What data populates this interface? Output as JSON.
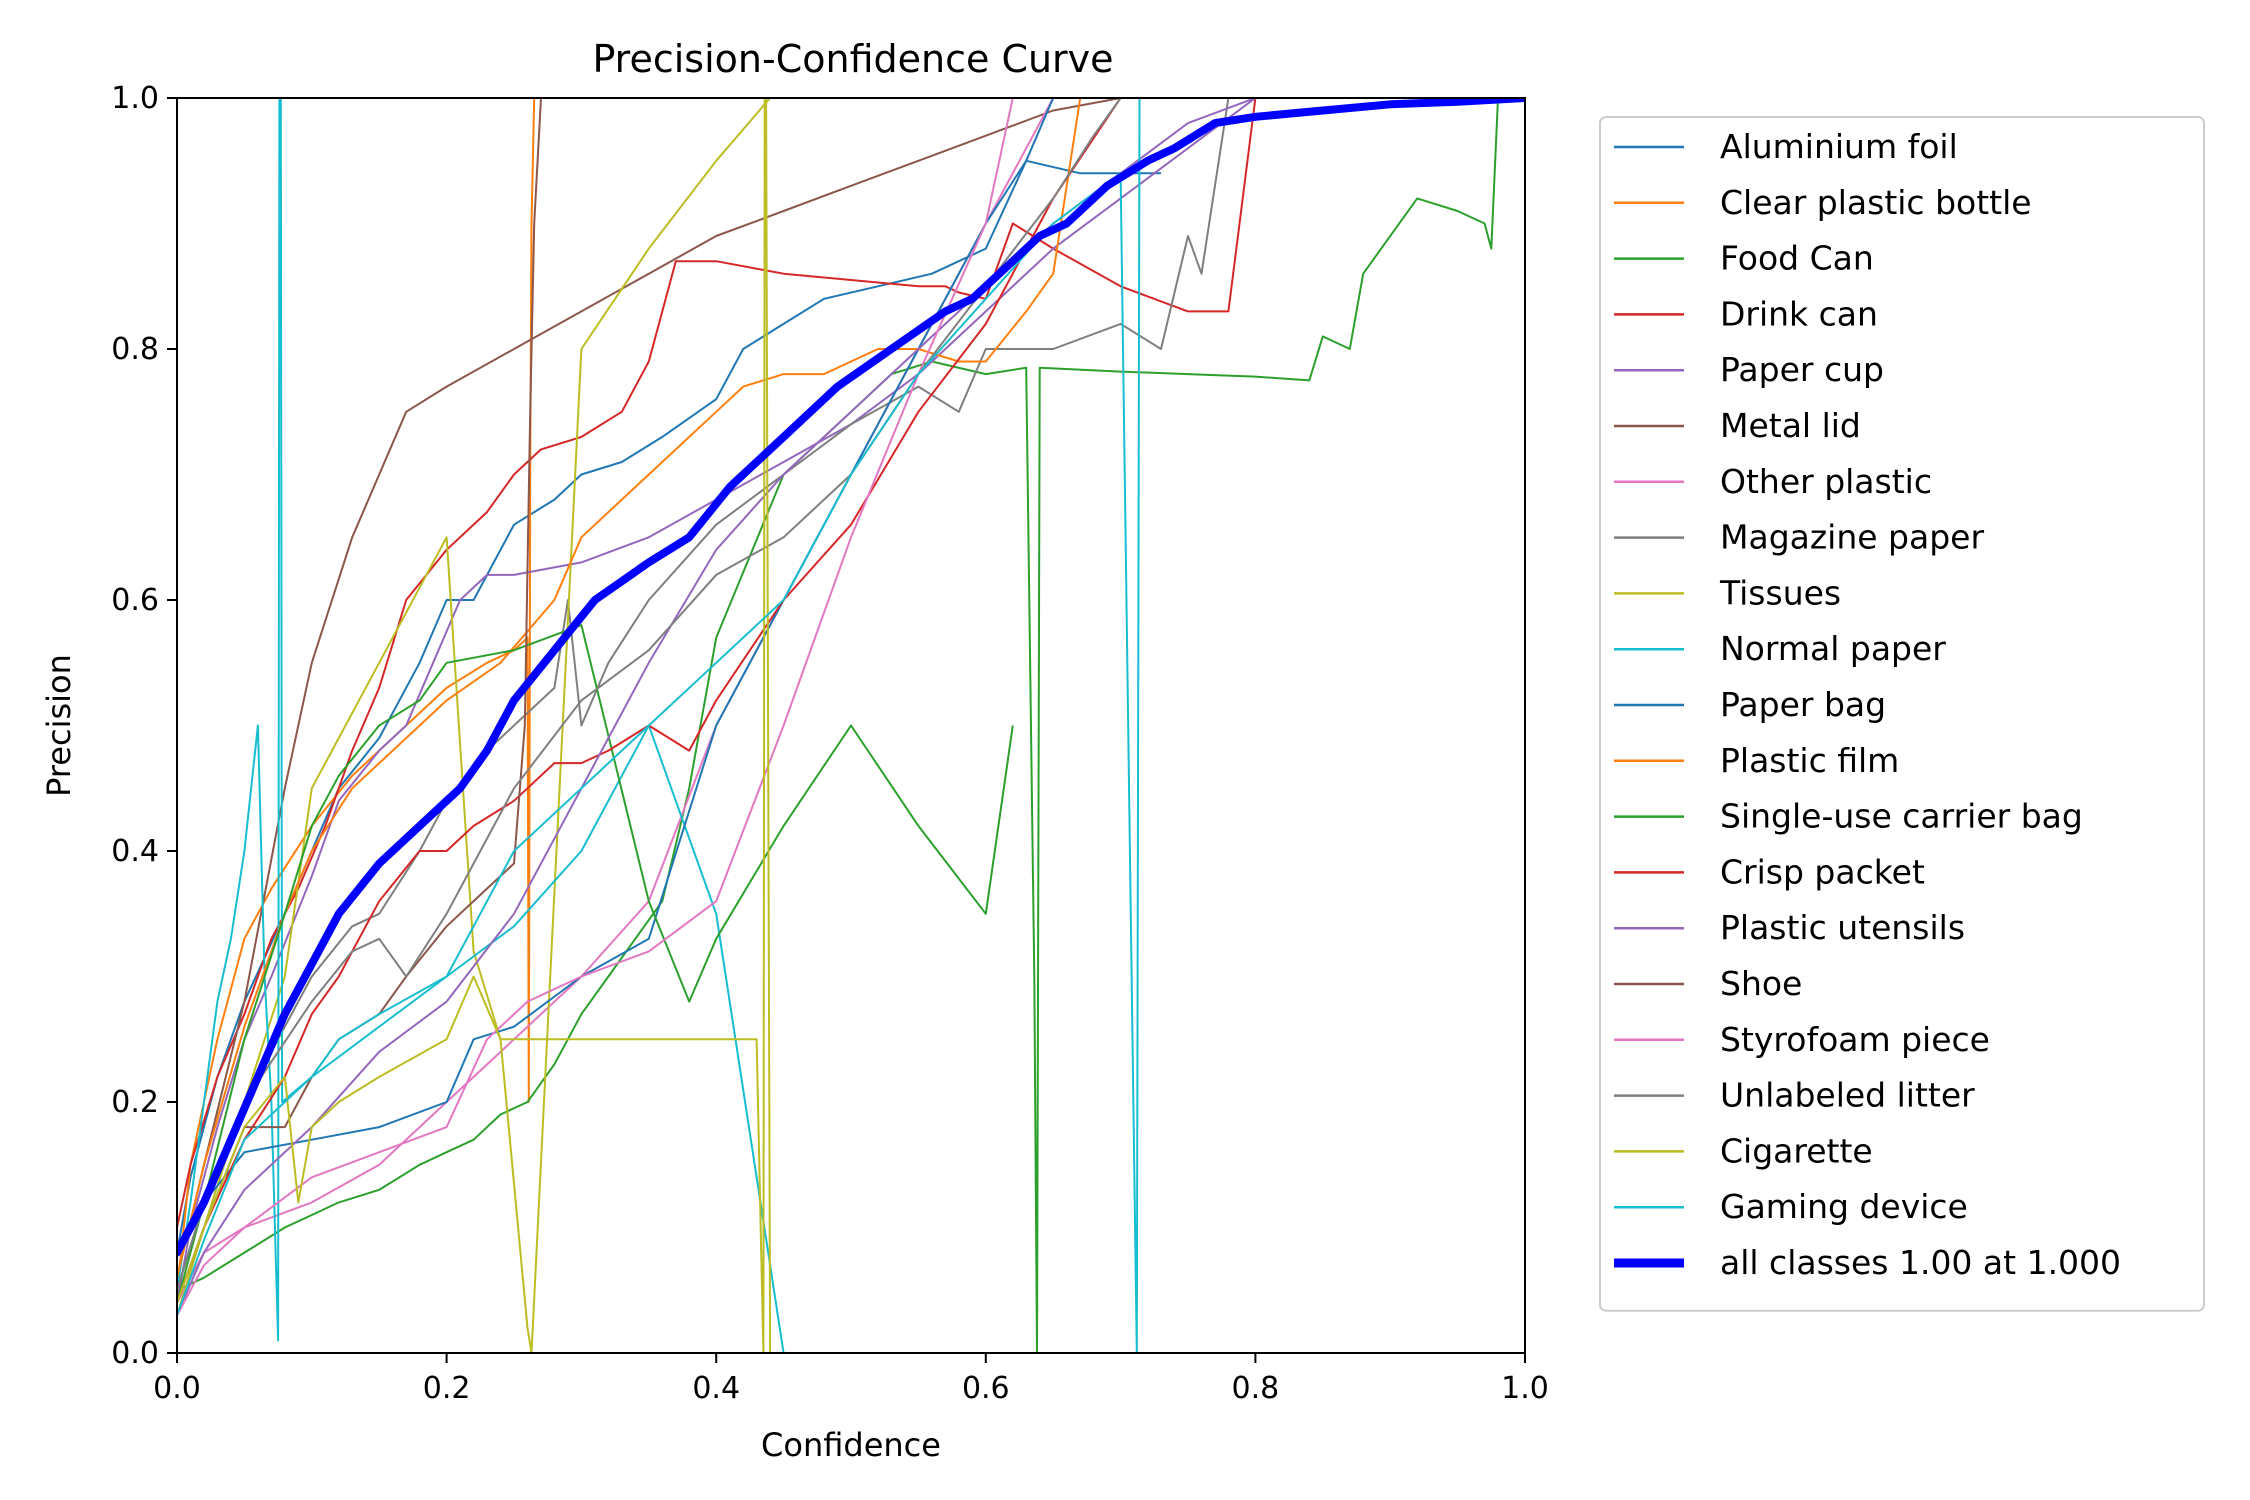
{
  "chart_data": {
    "type": "line",
    "title": "Precision-Confidence Curve",
    "xlabel": "Confidence",
    "ylabel": "Precision",
    "xlim": [
      0,
      1
    ],
    "ylim": [
      0,
      1
    ],
    "xticks": [
      "0.0",
      "0.2",
      "0.4",
      "0.6",
      "0.8",
      "1.0"
    ],
    "yticks": [
      "0.0",
      "0.2",
      "0.4",
      "0.6",
      "0.8",
      "1.0"
    ],
    "grid": false,
    "legend_position": "outside-right",
    "series": [
      {
        "name": "Aluminium foil",
        "color": "#1f77b4",
        "x": [
          0,
          0.01,
          0.03,
          0.05,
          0.08,
          0.1,
          0.12,
          0.15,
          0.18,
          0.2,
          0.22,
          0.25,
          0.28,
          0.3,
          0.33,
          0.36,
          0.4,
          0.42,
          0.45,
          0.48,
          0.52,
          0.56,
          0.6,
          0.63,
          0.67,
          0.7,
          0.73
        ],
        "y": [
          0.08,
          0.14,
          0.22,
          0.28,
          0.35,
          0.4,
          0.45,
          0.49,
          0.55,
          0.6,
          0.6,
          0.66,
          0.68,
          0.7,
          0.71,
          0.73,
          0.76,
          0.8,
          0.82,
          0.84,
          0.85,
          0.86,
          0.88,
          0.95,
          0.94,
          0.94,
          0.94
        ]
      },
      {
        "name": "Clear plastic bottle",
        "color": "#ff7f0e",
        "x": [
          0,
          0.01,
          0.03,
          0.05,
          0.07,
          0.1,
          0.13,
          0.16,
          0.2,
          0.23,
          0.25,
          0.26,
          0.261,
          0.262,
          0.263,
          0.265,
          0.268
        ],
        "y": [
          0.05,
          0.15,
          0.25,
          0.33,
          0.37,
          0.42,
          0.46,
          0.49,
          0.53,
          0.55,
          0.56,
          0.57,
          0.2,
          0.7,
          0.9,
          1.0,
          1.0
        ]
      },
      {
        "name": "Food Can",
        "color": "#2ca02c",
        "x": [
          0,
          0.02,
          0.05,
          0.08,
          0.1,
          0.12,
          0.15,
          0.18,
          0.2,
          0.22,
          0.24,
          0.26,
          0.28,
          0.3,
          0.32,
          0.34,
          0.36,
          0.38,
          0.4,
          0.45,
          0.5,
          0.53,
          0.56,
          0.6,
          0.63,
          0.636,
          0.638,
          0.64,
          0.7,
          0.75,
          0.8,
          0.84,
          0.85,
          0.87,
          0.88,
          0.92,
          0.95,
          0.97,
          0.975,
          0.98
        ],
        "y": [
          0.05,
          0.06,
          0.08,
          0.1,
          0.11,
          0.12,
          0.13,
          0.15,
          0.16,
          0.17,
          0.19,
          0.2,
          0.23,
          0.27,
          0.3,
          0.33,
          0.36,
          0.45,
          0.57,
          0.7,
          0.75,
          0.78,
          0.79,
          0.78,
          0.785,
          0.3,
          0.0,
          0.785,
          0.782,
          0.78,
          0.778,
          0.775,
          0.81,
          0.8,
          0.86,
          0.92,
          0.91,
          0.9,
          0.88,
          1.0
        ]
      },
      {
        "name": "Drink can",
        "color": "#d62728",
        "x": [
          0,
          0.01,
          0.03,
          0.05,
          0.07,
          0.09,
          0.11,
          0.13,
          0.15,
          0.17,
          0.2,
          0.23,
          0.25,
          0.27,
          0.3,
          0.33,
          0.35,
          0.37,
          0.39,
          0.4,
          0.45,
          0.5,
          0.55,
          0.57,
          0.58,
          0.6,
          0.62,
          0.65,
          0.7,
          0.75,
          0.78,
          0.8
        ],
        "y": [
          0.1,
          0.15,
          0.22,
          0.27,
          0.33,
          0.37,
          0.42,
          0.48,
          0.53,
          0.6,
          0.64,
          0.67,
          0.7,
          0.72,
          0.73,
          0.75,
          0.79,
          0.87,
          0.87,
          0.87,
          0.86,
          0.855,
          0.85,
          0.85,
          0.845,
          0.84,
          0.9,
          0.88,
          0.85,
          0.83,
          0.83,
          1.0
        ]
      },
      {
        "name": "Paper cup",
        "color": "#9467bd",
        "x": [
          0,
          0.01,
          0.03,
          0.05,
          0.07,
          0.1,
          0.12,
          0.15,
          0.17,
          0.19,
          0.21,
          0.23,
          0.25,
          0.3,
          0.35,
          0.4,
          0.45,
          0.5,
          0.55,
          0.6,
          0.65,
          0.7,
          0.75,
          0.8
        ],
        "y": [
          0.04,
          0.1,
          0.18,
          0.25,
          0.3,
          0.38,
          0.44,
          0.48,
          0.5,
          0.55,
          0.6,
          0.62,
          0.62,
          0.63,
          0.65,
          0.68,
          0.71,
          0.74,
          0.78,
          0.83,
          0.88,
          0.92,
          0.96,
          1.0
        ]
      },
      {
        "name": "Metal lid",
        "color": "#8c564b",
        "x": [
          0,
          0.02,
          0.05,
          0.08,
          0.1,
          0.13,
          0.15,
          0.17,
          0.2,
          0.25,
          0.3,
          0.35,
          0.4,
          0.45,
          0.5,
          0.55,
          0.6,
          0.65,
          0.7
        ],
        "y": [
          0.06,
          0.15,
          0.28,
          0.45,
          0.55,
          0.65,
          0.7,
          0.75,
          0.77,
          0.8,
          0.83,
          0.86,
          0.89,
          0.91,
          0.93,
          0.95,
          0.97,
          0.99,
          1.0
        ]
      },
      {
        "name": "Other plastic",
        "color": "#e377c2",
        "x": [
          0,
          0.02,
          0.05,
          0.1,
          0.15,
          0.2,
          0.25,
          0.3,
          0.35,
          0.4,
          0.45,
          0.5,
          0.55,
          0.6,
          0.65
        ],
        "y": [
          0.04,
          0.08,
          0.1,
          0.12,
          0.15,
          0.2,
          0.25,
          0.3,
          0.36,
          0.5,
          0.6,
          0.7,
          0.8,
          0.9,
          1.0
        ]
      },
      {
        "name": "Magazine paper",
        "color": "#7f7f7f",
        "x": [
          0,
          0.02,
          0.05,
          0.08,
          0.1,
          0.13,
          0.15,
          0.18,
          0.2,
          0.23,
          0.25,
          0.28,
          0.29,
          0.3,
          0.32,
          0.35,
          0.4,
          0.45,
          0.5,
          0.55,
          0.58,
          0.6,
          0.65,
          0.7,
          0.73,
          0.75,
          0.76,
          0.78
        ],
        "y": [
          0.05,
          0.12,
          0.2,
          0.26,
          0.3,
          0.34,
          0.35,
          0.4,
          0.44,
          0.48,
          0.5,
          0.53,
          0.6,
          0.5,
          0.55,
          0.6,
          0.66,
          0.7,
          0.74,
          0.77,
          0.75,
          0.8,
          0.8,
          0.82,
          0.8,
          0.89,
          0.86,
          1.0
        ]
      },
      {
        "name": "Tissues",
        "color": "#bcbd22",
        "x": [
          0,
          0.02,
          0.05,
          0.08,
          0.1,
          0.15,
          0.2,
          0.22,
          0.24,
          0.26,
          0.263,
          0.3,
          0.35,
          0.4,
          0.44
        ],
        "y": [
          0.03,
          0.1,
          0.2,
          0.3,
          0.45,
          0.55,
          0.65,
          0.32,
          0.25,
          0.02,
          0.0,
          0.8,
          0.88,
          0.95,
          1.0
        ]
      },
      {
        "name": "Normal paper",
        "color": "#17becf",
        "x": [
          0,
          0.01,
          0.02,
          0.03,
          0.04,
          0.05,
          0.06,
          0.065,
          0.07,
          0.075,
          0.076,
          0.077,
          0.078,
          0.1,
          0.15,
          0.2,
          0.25,
          0.3,
          0.35,
          0.4,
          0.45
        ],
        "y": [
          0.05,
          0.12,
          0.2,
          0.28,
          0.33,
          0.4,
          0.5,
          0.3,
          0.2,
          0.01,
          1.0,
          1.0,
          0.2,
          0.22,
          0.26,
          0.3,
          0.34,
          0.4,
          0.5,
          0.35,
          0.0
        ]
      },
      {
        "name": "Paper bag",
        "color": "#1f77b4",
        "x": [
          0,
          0.02,
          0.05,
          0.1,
          0.15,
          0.2,
          0.22,
          0.25,
          0.3,
          0.35,
          0.4,
          0.45,
          0.5,
          0.55,
          0.6,
          0.63,
          0.65,
          0.7
        ],
        "y": [
          0.05,
          0.12,
          0.16,
          0.17,
          0.18,
          0.2,
          0.25,
          0.26,
          0.3,
          0.33,
          0.5,
          0.6,
          0.7,
          0.8,
          0.9,
          0.95,
          1.0,
          1.0
        ]
      },
      {
        "name": "Plastic film",
        "color": "#ff7f0e",
        "x": [
          0,
          0.02,
          0.05,
          0.08,
          0.1,
          0.13,
          0.16,
          0.2,
          0.24,
          0.28,
          0.3,
          0.35,
          0.4,
          0.42,
          0.45,
          0.48,
          0.5,
          0.52,
          0.55,
          0.58,
          0.6,
          0.63,
          0.65,
          0.67
        ],
        "y": [
          0.06,
          0.15,
          0.26,
          0.35,
          0.4,
          0.45,
          0.48,
          0.52,
          0.55,
          0.6,
          0.65,
          0.7,
          0.75,
          0.77,
          0.78,
          0.78,
          0.79,
          0.8,
          0.8,
          0.79,
          0.79,
          0.83,
          0.86,
          1.0
        ]
      },
      {
        "name": "Single-use carrier bag",
        "color": "#2ca02c",
        "x": [
          0,
          0.02,
          0.05,
          0.08,
          0.1,
          0.12,
          0.15,
          0.18,
          0.2,
          0.25,
          0.3,
          0.35,
          0.38,
          0.4,
          0.45,
          0.5,
          0.55,
          0.6,
          0.62
        ],
        "y": [
          0.04,
          0.12,
          0.25,
          0.35,
          0.42,
          0.46,
          0.5,
          0.52,
          0.55,
          0.56,
          0.58,
          0.36,
          0.28,
          0.33,
          0.42,
          0.5,
          0.42,
          0.35,
          0.5
        ]
      },
      {
        "name": "Crisp packet",
        "color": "#d62728",
        "x": [
          0,
          0.02,
          0.05,
          0.08,
          0.1,
          0.12,
          0.15,
          0.18,
          0.2,
          0.22,
          0.25,
          0.28,
          0.3,
          0.32,
          0.35,
          0.38,
          0.4,
          0.45,
          0.5,
          0.55,
          0.6,
          0.63,
          0.65,
          0.7
        ],
        "y": [
          0.04,
          0.1,
          0.17,
          0.22,
          0.27,
          0.3,
          0.36,
          0.4,
          0.4,
          0.42,
          0.44,
          0.47,
          0.47,
          0.48,
          0.5,
          0.48,
          0.52,
          0.6,
          0.66,
          0.75,
          0.82,
          0.88,
          0.92,
          1.0
        ]
      },
      {
        "name": "Plastic utensils",
        "color": "#9467bd",
        "x": [
          0,
          0.02,
          0.05,
          0.1,
          0.15,
          0.2,
          0.25,
          0.3,
          0.35,
          0.4,
          0.45,
          0.5,
          0.55,
          0.6,
          0.65,
          0.7,
          0.75,
          0.8
        ],
        "y": [
          0.03,
          0.08,
          0.13,
          0.18,
          0.24,
          0.28,
          0.35,
          0.45,
          0.55,
          0.64,
          0.7,
          0.75,
          0.8,
          0.85,
          0.9,
          0.94,
          0.98,
          1.0
        ]
      },
      {
        "name": "Shoe",
        "color": "#8c564b",
        "x": [
          0,
          0.02,
          0.05,
          0.08,
          0.1,
          0.12,
          0.15,
          0.17,
          0.2,
          0.23,
          0.25,
          0.258,
          0.262,
          0.265,
          0.27
        ],
        "y": [
          0.04,
          0.1,
          0.18,
          0.18,
          0.22,
          0.25,
          0.27,
          0.3,
          0.34,
          0.37,
          0.39,
          0.5,
          0.75,
          0.9,
          1.0
        ]
      },
      {
        "name": "Styrofoam piece",
        "color": "#e377c2",
        "x": [
          0,
          0.02,
          0.05,
          0.1,
          0.15,
          0.2,
          0.23,
          0.26,
          0.3,
          0.35,
          0.4,
          0.45,
          0.5,
          0.55,
          0.6,
          0.62
        ],
        "y": [
          0.03,
          0.07,
          0.1,
          0.14,
          0.16,
          0.18,
          0.25,
          0.28,
          0.3,
          0.32,
          0.36,
          0.5,
          0.65,
          0.78,
          0.9,
          1.0
        ]
      },
      {
        "name": "Unlabeled litter",
        "color": "#7f7f7f",
        "x": [
          0,
          0.02,
          0.05,
          0.1,
          0.13,
          0.15,
          0.17,
          0.2,
          0.25,
          0.3,
          0.35,
          0.4,
          0.45,
          0.5,
          0.55,
          0.6,
          0.65,
          0.68,
          0.7
        ],
        "y": [
          0.05,
          0.12,
          0.2,
          0.28,
          0.32,
          0.33,
          0.3,
          0.35,
          0.45,
          0.52,
          0.56,
          0.62,
          0.65,
          0.7,
          0.78,
          0.85,
          0.92,
          0.97,
          1.0
        ]
      },
      {
        "name": "Cigarette",
        "color": "#bcbd22",
        "x": [
          0,
          0.02,
          0.05,
          0.08,
          0.09,
          0.1,
          0.12,
          0.15,
          0.2,
          0.22,
          0.24,
          0.43,
          0.435,
          0.436,
          0.437,
          0.44
        ],
        "y": [
          0.04,
          0.1,
          0.18,
          0.22,
          0.12,
          0.18,
          0.2,
          0.22,
          0.25,
          0.3,
          0.25,
          0.25,
          0.0,
          1.0,
          1.0,
          0.0
        ]
      },
      {
        "name": "Gaming device",
        "color": "#17becf",
        "x": [
          0,
          0.02,
          0.05,
          0.08,
          0.1,
          0.12,
          0.15,
          0.2,
          0.25,
          0.3,
          0.35,
          0.4,
          0.45,
          0.5,
          0.55,
          0.6,
          0.65,
          0.7,
          0.712,
          0.714,
          0.716
        ],
        "y": [
          0.03,
          0.09,
          0.17,
          0.2,
          0.22,
          0.25,
          0.27,
          0.3,
          0.4,
          0.45,
          0.5,
          0.55,
          0.6,
          0.7,
          0.78,
          0.84,
          0.9,
          0.94,
          0.0,
          1.0,
          1.0
        ]
      }
    ],
    "aggregate": {
      "name": "all classes 1.00 at 1.000",
      "color": "#0000ff",
      "x": [
        0,
        0.02,
        0.04,
        0.06,
        0.08,
        0.1,
        0.12,
        0.15,
        0.18,
        0.21,
        0.23,
        0.25,
        0.28,
        0.31,
        0.35,
        0.38,
        0.41,
        0.45,
        0.49,
        0.53,
        0.57,
        0.59,
        0.61,
        0.64,
        0.66,
        0.69,
        0.72,
        0.74,
        0.77,
        0.8,
        0.85,
        0.9,
        0.95,
        1.0
      ],
      "y": [
        0.08,
        0.12,
        0.17,
        0.22,
        0.27,
        0.31,
        0.35,
        0.39,
        0.42,
        0.45,
        0.48,
        0.52,
        0.56,
        0.6,
        0.63,
        0.65,
        0.69,
        0.73,
        0.77,
        0.8,
        0.83,
        0.84,
        0.86,
        0.89,
        0.9,
        0.93,
        0.95,
        0.96,
        0.98,
        0.985,
        0.99,
        0.995,
        0.997,
        1.0
      ]
    }
  }
}
